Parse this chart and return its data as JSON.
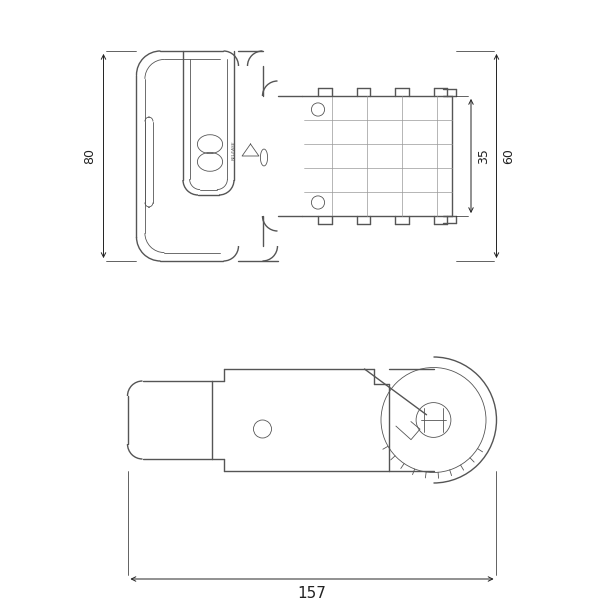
{
  "bg_color": "#ffffff",
  "line_color": "#555555",
  "dim_color": "#222222",
  "dim_80": "80",
  "dim_35": "35",
  "dim_60": "60",
  "dim_157": "157",
  "lw_outer": 1.0,
  "lw_inner": 0.6,
  "lw_dim": 0.7,
  "fig_width": 6.0,
  "fig_height": 6.0
}
